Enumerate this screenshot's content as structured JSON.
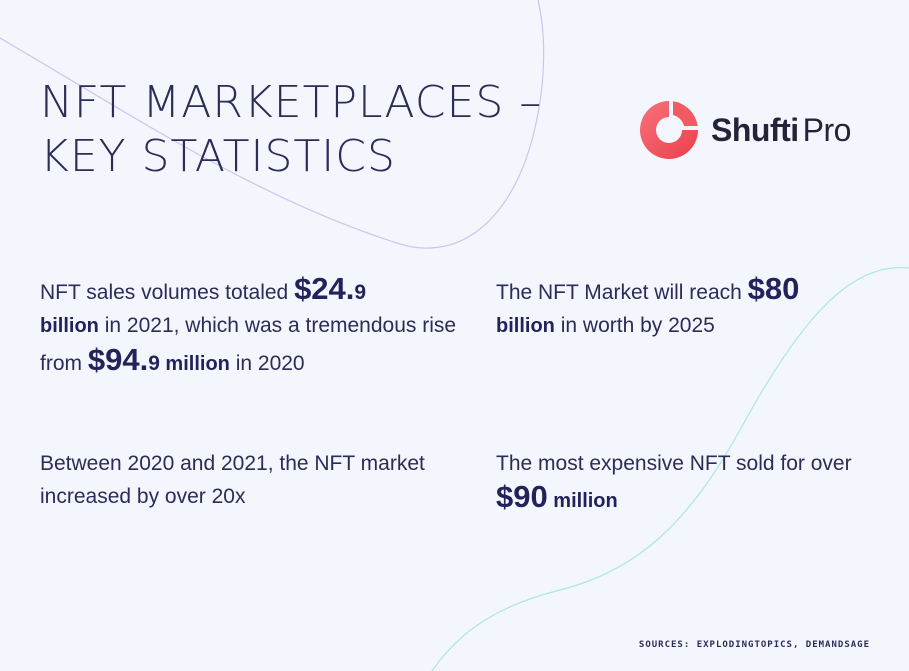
{
  "title": {
    "line1": "NFT MARKETPLACES –",
    "line2": "KEY STATISTICS"
  },
  "logo": {
    "icon": "shufti-pro-logo-icon",
    "text_bold": "Shufti",
    "text_light": "Pro"
  },
  "stats": {
    "sales": {
      "t1": "NFT sales volumes totaled ",
      "v1_big": "$24.",
      "v1_small": "9",
      "v1_unit": "billion",
      "t2": " in 2021, which was a tremendous rise from ",
      "v2_big": "$94.",
      "v2_small": "9",
      "v2_unit": " million",
      "t3": " in 2020"
    },
    "market": {
      "t1": "The NFT Market will reach ",
      "v1_big": "$80",
      "v1_unit": "billion",
      "t2": " in worth by 2025"
    },
    "growth": {
      "t1": "Between 2020 and 2021, the NFT market increased by over 20x"
    },
    "expensive": {
      "t1": "The most expensive NFT sold for over ",
      "v1_big": "$90",
      "v1_unit": " million"
    }
  },
  "sources": "SOURCES: EXPLODINGTOPICS, DEMANDSAGE",
  "colors": {
    "background": "#f3f6fd",
    "text": "#2d2b57",
    "brand": "#f0505a",
    "curve_purple": "#c9c6ee",
    "curve_teal": "#a9e6ea"
  }
}
